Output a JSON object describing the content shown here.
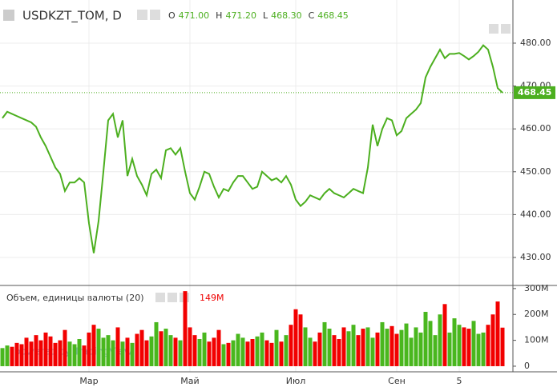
{
  "chart_data": [
    {
      "type": "line",
      "title": "USDKZT_TOM, D",
      "ohlc": [
        {
          "key": "O",
          "value": "471.00"
        },
        {
          "key": "H",
          "value": "471.20"
        },
        {
          "key": "L",
          "value": "468.30"
        },
        {
          "key": "C",
          "value": "468.45"
        }
      ],
      "categories": [
        null,
        null,
        null,
        null,
        null,
        null,
        null,
        null,
        null,
        null,
        null,
        null,
        null,
        null,
        null,
        null,
        null,
        null,
        "Мар",
        null,
        null,
        null,
        null,
        null,
        null,
        null,
        null,
        null,
        null,
        null,
        null,
        null,
        null,
        null,
        null,
        null,
        null,
        null,
        null,
        "Май",
        null,
        null,
        null,
        null,
        null,
        null,
        null,
        null,
        null,
        null,
        null,
        null,
        null,
        null,
        null,
        null,
        null,
        null,
        null,
        null,
        null,
        "Июл",
        null,
        null,
        null,
        null,
        null,
        null,
        null,
        null,
        null,
        null,
        null,
        null,
        null,
        null,
        null,
        null,
        null,
        null,
        null,
        null,
        "Сен",
        null,
        null,
        null,
        null,
        null,
        null,
        null,
        null,
        null,
        null,
        null,
        null,
        "5",
        null,
        null,
        null,
        null,
        null,
        null,
        null,
        null,
        null
      ],
      "values": [
        462.5,
        464,
        463.5,
        463,
        462.5,
        462,
        461.5,
        460.5,
        458,
        456,
        453.5,
        451,
        449.5,
        445.5,
        447.5,
        447.5,
        448.5,
        447.5,
        438,
        431,
        438.5,
        450,
        462,
        463.5,
        458,
        462,
        449,
        453,
        449,
        447,
        444.5,
        449.5,
        450.5,
        448.5,
        455,
        455.5,
        454,
        455.5,
        450,
        445,
        443.5,
        446.5,
        450,
        449.5,
        446.5,
        444,
        446,
        445.5,
        447.5,
        449,
        449,
        447.5,
        446,
        446.5,
        450,
        449,
        448,
        448.5,
        447.5,
        449,
        447,
        443.5,
        442,
        443,
        444.5,
        444,
        443.5,
        445,
        446,
        445,
        444.5,
        444,
        445,
        446,
        445.5,
        445,
        451,
        461,
        456,
        460,
        462.5,
        462,
        458.5,
        459.5,
        462.5,
        463.5,
        464.5,
        466,
        472,
        474.5,
        476.5,
        478.5,
        476.5,
        477.5,
        477.5,
        477.7,
        477,
        476.2,
        477,
        478,
        479.5,
        478.5,
        474.5,
        469.5,
        468.45
      ],
      "color": "#4caf1f",
      "ylim": [
        423.47,
        490.07
      ],
      "yticks": [
        {
          "value": 430,
          "label": "430.00"
        },
        {
          "value": 440,
          "label": "440.00"
        },
        {
          "value": 450,
          "label": "450.00"
        },
        {
          "value": 460,
          "label": "460.00"
        },
        {
          "value": 470,
          "label": "470.00"
        },
        {
          "value": 480,
          "label": "480.00"
        }
      ],
      "grid": true
    },
    {
      "type": "bar",
      "title": "Объем, единицы валюты (20)",
      "values": [
        70,
        80,
        75,
        90,
        85,
        110,
        95,
        120,
        100,
        130,
        115,
        90,
        100,
        140,
        95,
        85,
        105,
        80,
        130,
        160,
        145,
        110,
        120,
        100,
        150,
        95,
        110,
        90,
        125,
        140,
        100,
        115,
        170,
        135,
        145,
        120,
        110,
        100,
        290,
        150,
        120,
        105,
        130,
        95,
        110,
        140,
        85,
        90,
        100,
        125,
        110,
        95,
        105,
        115,
        130,
        100,
        90,
        140,
        95,
        120,
        160,
        220,
        200,
        150,
        110,
        95,
        130,
        170,
        145,
        120,
        105,
        150,
        135,
        160,
        120,
        145,
        150,
        110,
        130,
        170,
        145,
        155,
        125,
        140,
        165,
        110,
        150,
        130,
        210,
        175,
        120,
        200,
        240,
        130,
        185,
        160,
        150,
        145,
        175,
        125,
        130,
        160,
        200,
        250,
        149
      ],
      "legend_value": {
        "value": 149,
        "label": "149M"
      },
      "up_color": "#49b71e",
      "down_color": "#f20000",
      "ylim": [
        -21.7,
        312
      ],
      "yticks": [
        0,
        {
          "value": 100,
          "label": "100M"
        },
        {
          "value": 200,
          "label": "200M"
        },
        {
          "value": 300,
          "label": "300M"
        }
      ]
    }
  ]
}
